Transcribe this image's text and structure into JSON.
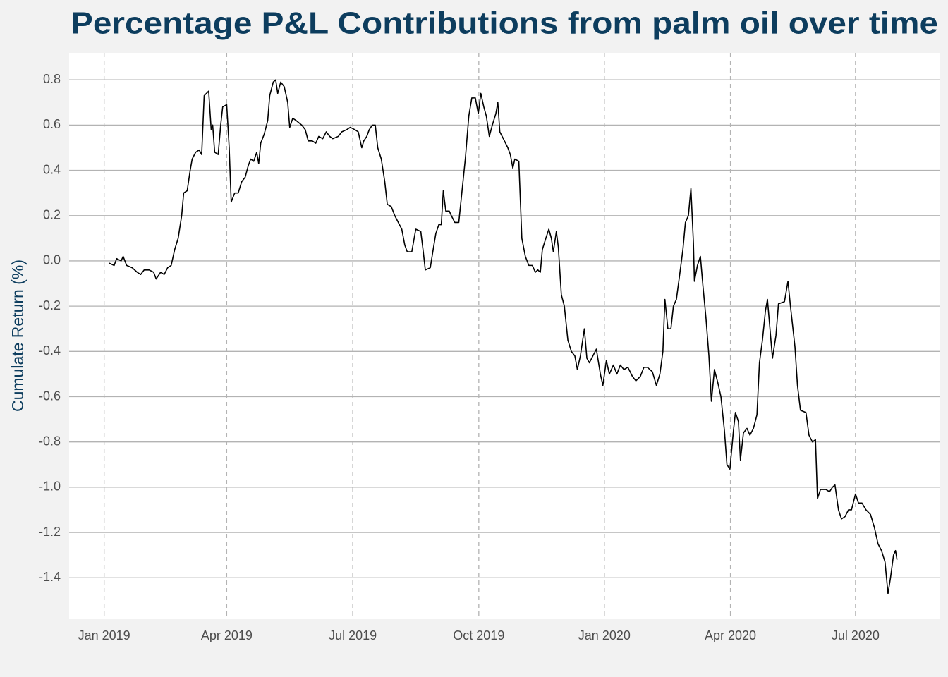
{
  "chart_data": {
    "type": "line",
    "title": "Percentage P&L Contributions from palm oil over time",
    "y_label": "Cumulate Return (%)",
    "color": "#000000",
    "grid": true,
    "xlim": [
      2018.93,
      2020.67
    ],
    "xticks": [
      {
        "value": 2019,
        "label": "Jan 2019"
      },
      {
        "value": 2019.245,
        "label": "Apr 2019"
      },
      {
        "value": 2019.497,
        "label": "Jul 2019"
      },
      {
        "value": 2019.749,
        "label": "Oct 2019"
      },
      {
        "value": 2020,
        "label": "Jan 2020"
      },
      {
        "value": 2020.252,
        "label": "Apr 2020"
      },
      {
        "value": 2020.502,
        "label": "Jul 2020"
      }
    ],
    "ylim": [
      -1.583,
      0.919
    ],
    "yticks": [
      0.8,
      0.6,
      0.4,
      0.2,
      {
        "value": 0,
        "label": "0.0"
      },
      -0.2,
      -0.4,
      -0.6,
      -0.8,
      {
        "value": -1,
        "label": "-1.0"
      },
      -1.2,
      -1.4
    ],
    "x": [
      2019.01,
      2019.02,
      2019.025,
      2019.034,
      2019.038,
      2019.045,
      2019.056,
      2019.066,
      2019.073,
      2019.08,
      2019.09,
      2019.099,
      2019.104,
      2019.113,
      2019.12,
      2019.127,
      2019.134,
      2019.141,
      2019.148,
      2019.155,
      2019.159,
      2019.166,
      2019.172,
      2019.176,
      2019.183,
      2019.19,
      2019.195,
      2019.2,
      2019.209,
      2019.214,
      2019.217,
      2019.221,
      2019.228,
      2019.233,
      2019.237,
      2019.245,
      2019.25,
      2019.254,
      2019.261,
      2019.268,
      2019.275,
      2019.282,
      2019.288,
      2019.293,
      2019.299,
      2019.305,
      2019.309,
      2019.313,
      2019.32,
      2019.327,
      2019.331,
      2019.338,
      2019.343,
      2019.347,
      2019.353,
      2019.36,
      2019.367,
      2019.371,
      2019.377,
      2019.384,
      2019.395,
      2019.402,
      2019.408,
      2019.416,
      2019.423,
      2019.429,
      2019.437,
      2019.444,
      2019.451,
      2019.457,
      2019.468,
      2019.475,
      2019.485,
      2019.492,
      2019.501,
      2019.508,
      2019.515,
      2019.519,
      2019.525,
      2019.53,
      2019.536,
      2019.542,
      2019.547,
      2019.554,
      2019.561,
      2019.566,
      2019.574,
      2019.581,
      2019.588,
      2019.595,
      2019.601,
      2019.606,
      2019.615,
      2019.623,
      2019.633,
      2019.638,
      2019.642,
      2019.652,
      2019.657,
      2019.663,
      2019.669,
      2019.674,
      2019.678,
      2019.683,
      2019.69,
      2019.694,
      2019.701,
      2019.709,
      2019.715,
      2019.722,
      2019.729,
      2019.735,
      2019.742,
      2019.748,
      2019.753,
      2019.759,
      2019.764,
      2019.77,
      2019.776,
      2019.783,
      2019.787,
      2019.791,
      2019.798,
      2019.807,
      2019.812,
      2019.817,
      2019.821,
      2019.829,
      2019.835,
      2019.842,
      2019.849,
      2019.856,
      2019.862,
      2019.867,
      2019.872,
      2019.876,
      2019.883,
      2019.889,
      2019.894,
      2019.898,
      2019.904,
      2019.908,
      2019.914,
      2019.92,
      2019.927,
      2019.934,
      2019.941,
      2019.946,
      2019.952,
      2019.96,
      2019.965,
      2019.97,
      2019.977,
      2019.984,
      2019.992,
      2019.997,
      2020.004,
      2020.01,
      2020.018,
      2020.025,
      2020.032,
      2020.039,
      2020.047,
      2020.056,
      2020.063,
      2020.072,
      2020.079,
      2020.086,
      2020.096,
      2020.104,
      2020.111,
      2020.117,
      2020.121,
      2020.127,
      2020.133,
      2020.138,
      2020.144,
      2020.15,
      2020.157,
      2020.162,
      2020.168,
      2020.173,
      2020.178,
      2020.18,
      2020.186,
      2020.192,
      2020.197,
      2020.203,
      2020.209,
      2020.214,
      2020.22,
      2020.227,
      2020.233,
      2020.24,
      2020.245,
      2020.251,
      2020.258,
      2020.262,
      2020.268,
      2020.272,
      2020.278,
      2020.285,
      2020.291,
      2020.298,
      2020.305,
      2020.31,
      2020.316,
      2020.322,
      2020.326,
      2020.331,
      2020.336,
      2020.343,
      2020.348,
      2020.36,
      2020.367,
      2020.372,
      2020.381,
      2020.386,
      2020.392,
      2020.403,
      2020.409,
      2020.416,
      2020.422,
      2020.426,
      2020.432,
      2020.443,
      2020.45,
      2020.456,
      2020.461,
      2020.468,
      2020.474,
      2020.481,
      2020.488,
      2020.494,
      2020.502,
      2020.508,
      2020.515,
      2020.523,
      2020.532,
      2020.54,
      2020.547,
      2020.554,
      2020.561,
      2020.567,
      2020.572,
      2020.578,
      2020.582,
      2020.585
    ],
    "values": [
      -0.01,
      -0.02,
      0.01,
      0.0,
      0.02,
      -0.02,
      -0.03,
      -0.05,
      -0.06,
      -0.04,
      -0.04,
      -0.05,
      -0.08,
      -0.05,
      -0.06,
      -0.03,
      -0.02,
      0.05,
      0.1,
      0.2,
      0.3,
      0.31,
      0.4,
      0.45,
      0.48,
      0.49,
      0.47,
      0.73,
      0.75,
      0.58,
      0.6,
      0.48,
      0.47,
      0.6,
      0.68,
      0.69,
      0.5,
      0.26,
      0.3,
      0.3,
      0.35,
      0.37,
      0.42,
      0.45,
      0.44,
      0.48,
      0.43,
      0.52,
      0.56,
      0.62,
      0.73,
      0.79,
      0.8,
      0.74,
      0.79,
      0.77,
      0.7,
      0.59,
      0.63,
      0.62,
      0.6,
      0.58,
      0.53,
      0.53,
      0.52,
      0.55,
      0.54,
      0.57,
      0.55,
      0.54,
      0.55,
      0.57,
      0.58,
      0.59,
      0.58,
      0.57,
      0.5,
      0.53,
      0.55,
      0.58,
      0.6,
      0.6,
      0.5,
      0.45,
      0.35,
      0.25,
      0.24,
      0.2,
      0.17,
      0.14,
      0.07,
      0.04,
      0.04,
      0.14,
      0.13,
      0.04,
      -0.04,
      -0.03,
      0.04,
      0.12,
      0.16,
      0.16,
      0.31,
      0.22,
      0.22,
      0.2,
      0.17,
      0.17,
      0.3,
      0.45,
      0.64,
      0.72,
      0.72,
      0.65,
      0.74,
      0.68,
      0.64,
      0.55,
      0.6,
      0.65,
      0.7,
      0.57,
      0.54,
      0.5,
      0.47,
      0.41,
      0.45,
      0.44,
      0.1,
      0.02,
      -0.02,
      -0.02,
      -0.05,
      -0.04,
      -0.05,
      0.05,
      0.1,
      0.14,
      0.1,
      0.04,
      0.13,
      0.06,
      -0.15,
      -0.2,
      -0.35,
      -0.4,
      -0.42,
      -0.48,
      -0.42,
      -0.3,
      -0.43,
      -0.45,
      -0.42,
      -0.39,
      -0.5,
      -0.55,
      -0.44,
      -0.5,
      -0.46,
      -0.5,
      -0.46,
      -0.48,
      -0.47,
      -0.51,
      -0.53,
      -0.51,
      -0.47,
      -0.47,
      -0.49,
      -0.55,
      -0.5,
      -0.4,
      -0.17,
      -0.3,
      -0.3,
      -0.2,
      -0.17,
      -0.07,
      0.05,
      0.17,
      0.2,
      0.32,
      0.08,
      -0.09,
      -0.02,
      0.02,
      -0.11,
      -0.25,
      -0.42,
      -0.62,
      -0.48,
      -0.54,
      -0.6,
      -0.75,
      -0.9,
      -0.92,
      -0.75,
      -0.67,
      -0.71,
      -0.88,
      -0.76,
      -0.74,
      -0.77,
      -0.74,
      -0.68,
      -0.45,
      -0.35,
      -0.22,
      -0.17,
      -0.3,
      -0.43,
      -0.33,
      -0.19,
      -0.18,
      -0.09,
      -0.2,
      -0.38,
      -0.55,
      -0.66,
      -0.67,
      -0.77,
      -0.8,
      -0.79,
      -1.05,
      -1.01,
      -1.01,
      -1.02,
      -1.0,
      -0.99,
      -1.1,
      -1.14,
      -1.13,
      -1.1,
      -1.1,
      -1.03,
      -1.07,
      -1.07,
      -1.1,
      -1.12,
      -1.18,
      -1.25,
      -1.28,
      -1.33,
      -1.47,
      -1.4,
      -1.3,
      -1.28,
      -1.32
    ]
  }
}
